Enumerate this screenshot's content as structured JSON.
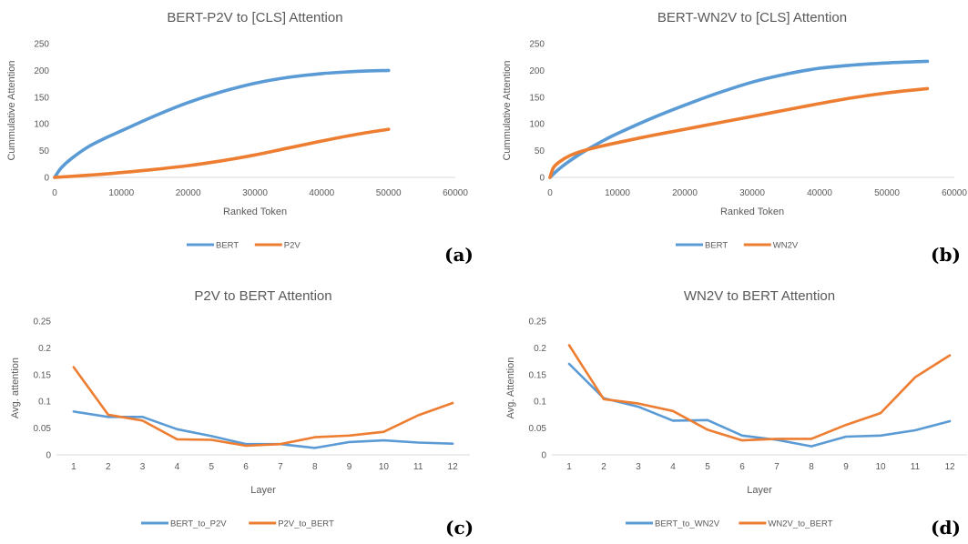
{
  "panel_labels": {
    "a": "(a)",
    "b": "(b)",
    "c": "(c)",
    "d": "(d)"
  },
  "colors": {
    "blue": "#5b9bd5",
    "orange": "#ed7d31",
    "text": "#595959",
    "axis": "#d9d9d9"
  },
  "chart_data": [
    {
      "id": "a",
      "type": "line",
      "title": "BERT-P2V to [CLS] Attention",
      "xlabel": "Ranked Token",
      "ylabel": "Cummulative Attention",
      "xlim": [
        0,
        60000
      ],
      "ylim": [
        0,
        250
      ],
      "xticks": [
        0,
        10000,
        20000,
        30000,
        40000,
        50000,
        60000
      ],
      "yticks": [
        0,
        50,
        100,
        150,
        200,
        250
      ],
      "grid": false,
      "legend": "bottom",
      "series": [
        {
          "name": "BERT",
          "color": "#5b9bd5",
          "x": [
            0,
            1000,
            2500,
            5000,
            7500,
            10000,
            15000,
            20000,
            25000,
            30000,
            35000,
            40000,
            45000,
            50000
          ],
          "y": [
            0,
            18,
            35,
            57,
            73,
            87,
            115,
            140,
            160,
            176,
            187,
            194,
            198,
            200
          ]
        },
        {
          "name": "P2V",
          "color": "#ed7d31",
          "x": [
            0,
            5000,
            10000,
            15000,
            20000,
            25000,
            30000,
            35000,
            40000,
            45000,
            50000
          ],
          "y": [
            0,
            4,
            9,
            15,
            22,
            31,
            42,
            55,
            68,
            80,
            90
          ]
        }
      ]
    },
    {
      "id": "b",
      "type": "line",
      "title": "BERT-WN2V to [CLS] Attention",
      "xlabel": "Ranked Token",
      "ylabel": "Cummulative Attention",
      "xlim": [
        0,
        60000
      ],
      "ylim": [
        0,
        250
      ],
      "xticks": [
        0,
        10000,
        20000,
        30000,
        40000,
        50000,
        60000
      ],
      "yticks": [
        0,
        50,
        100,
        150,
        200,
        250
      ],
      "grid": false,
      "legend": "bottom",
      "series": [
        {
          "name": "BERT",
          "color": "#5b9bd5",
          "x": [
            0,
            1000,
            2500,
            5000,
            7500,
            10000,
            15000,
            20000,
            25000,
            30000,
            35000,
            40000,
            45000,
            50000,
            56000
          ],
          "y": [
            0,
            12,
            27,
            48,
            66,
            82,
            110,
            135,
            158,
            178,
            193,
            204,
            210,
            214,
            217
          ]
        },
        {
          "name": "WN2V",
          "color": "#ed7d31",
          "x": [
            0,
            500,
            1500,
            3000,
            5000,
            7500,
            10000,
            15000,
            20000,
            25000,
            30000,
            35000,
            40000,
            45000,
            50000,
            56000
          ],
          "y": [
            0,
            18,
            30,
            41,
            50,
            58,
            65,
            78,
            90,
            102,
            114,
            126,
            138,
            149,
            158,
            166
          ]
        }
      ]
    },
    {
      "id": "c",
      "type": "line",
      "title": "P2V to BERT Attention",
      "xlabel": "Layer",
      "ylabel": "Avg. attention",
      "categories": [
        "1",
        "2",
        "3",
        "4",
        "5",
        "6",
        "7",
        "8",
        "9",
        "10",
        "11",
        "12"
      ],
      "ylim": [
        0,
        0.25
      ],
      "yticks": [
        "0",
        "0.05",
        "0.1",
        "0.15",
        "0.2",
        "0.25"
      ],
      "grid": false,
      "legend": "bottom",
      "series": [
        {
          "name": "BERT_to_P2V",
          "color": "#5b9bd5",
          "values": [
            0.081,
            0.071,
            0.071,
            0.048,
            0.035,
            0.02,
            0.02,
            0.013,
            0.024,
            0.027,
            0.023,
            0.021
          ]
        },
        {
          "name": "P2V_to_BERT",
          "color": "#ed7d31",
          "values": [
            0.164,
            0.075,
            0.064,
            0.029,
            0.028,
            0.017,
            0.02,
            0.033,
            0.036,
            0.043,
            0.074,
            0.097
          ]
        }
      ]
    },
    {
      "id": "d",
      "type": "line",
      "title": "WN2V to BERT Attention",
      "xlabel": "Layer",
      "ylabel": "Avg. Attention",
      "categories": [
        "1",
        "2",
        "3",
        "4",
        "5",
        "6",
        "7",
        "8",
        "9",
        "10",
        "11",
        "12"
      ],
      "ylim": [
        0,
        0.25
      ],
      "yticks": [
        "0",
        "0.05",
        "0.1",
        "0.15",
        "0.2",
        "0.25"
      ],
      "grid": false,
      "legend": "bottom",
      "series": [
        {
          "name": "BERT_to_WN2V",
          "color": "#5b9bd5",
          "values": [
            0.17,
            0.106,
            0.09,
            0.064,
            0.065,
            0.036,
            0.028,
            0.016,
            0.034,
            0.036,
            0.046,
            0.063
          ]
        },
        {
          "name": "WN2V_to_BERT",
          "color": "#ed7d31",
          "values": [
            0.205,
            0.104,
            0.096,
            0.082,
            0.047,
            0.027,
            0.03,
            0.03,
            0.056,
            0.078,
            0.145,
            0.186
          ]
        }
      ]
    }
  ]
}
